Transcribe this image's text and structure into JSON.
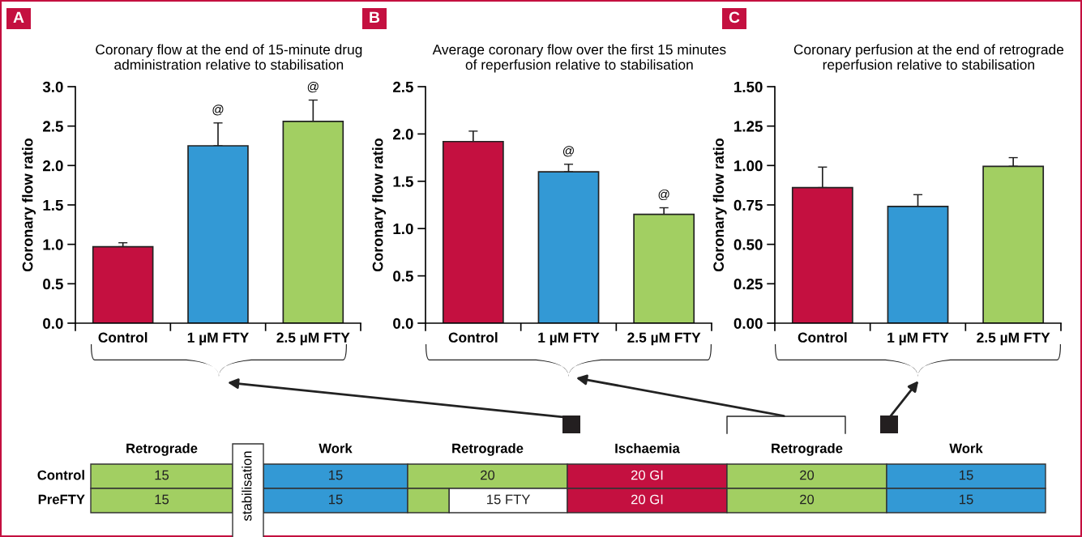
{
  "chart_data": [
    {
      "type": "bar",
      "title": "Coronary flow at the end of 15-minute drug\nadministration relative to stabilisation",
      "ylabel": "Coronary flow ratio",
      "categories": [
        "Control",
        "1 µM FTY",
        "2.5 µM FTY"
      ],
      "values": [
        0.97,
        2.25,
        2.56
      ],
      "colors": [
        "#c41040",
        "#3399d5",
        "#a2cf62"
      ],
      "errors": [
        [
          0.97,
          1.02
        ],
        [
          2.25,
          2.54
        ],
        [
          2.56,
          2.83
        ]
      ],
      "ylim": [
        0,
        3
      ],
      "yticks": [
        {
          "value": 0,
          "label": "0.0"
        },
        0.5,
        {
          "value": 1,
          "label": "1.0"
        },
        1.5,
        {
          "value": 2,
          "label": "2.0"
        },
        2.5,
        {
          "value": 3,
          "label": "3.0"
        }
      ],
      "annotations": [
        "A",
        {
          "text": "@",
          "x": "1 µM FTY",
          "y": 2.54
        },
        {
          "text": "@",
          "x": "2.5 µM FTY",
          "y": 2.83
        }
      ],
      "grid": false,
      "legend": false
    },
    {
      "type": "bar",
      "title": "Average coronary flow over the first 15 minutes\nof reperfusion relative to stabilisation",
      "ylabel": "Coronary flow ratio",
      "categories": [
        "Control",
        "1 µM FTY",
        "2.5 µM FTY"
      ],
      "values": [
        1.92,
        1.6,
        1.15
      ],
      "colors": [
        "#c41040",
        "#3399d5",
        "#a2cf62"
      ],
      "errors": [
        [
          1.92,
          2.03
        ],
        [
          1.6,
          1.68
        ],
        [
          1.15,
          1.22
        ]
      ],
      "ylim": [
        0,
        2.5
      ],
      "yticks": [
        {
          "value": 0,
          "label": "0.0"
        },
        0.5,
        {
          "value": 1,
          "label": "1.0"
        },
        1.5,
        {
          "value": 2,
          "label": "2.0"
        },
        2.5
      ],
      "annotations": [
        "B",
        {
          "text": "@",
          "x": "1 µM FTY",
          "y": 1.68
        },
        {
          "text": "@",
          "x": "2.5 µM FTY",
          "y": 1.22
        }
      ],
      "grid": false,
      "legend": false
    },
    {
      "type": "bar",
      "title": "Coronary perfusion at the end of retrograde\nreperfusion relative to stabilisation",
      "ylabel": "Coronary flow ratio",
      "categories": [
        "Control",
        "1 µM FTY",
        "2.5 µM FTY"
      ],
      "values": [
        0.86,
        0.74,
        0.995
      ],
      "colors": [
        "#c41040",
        "#3399d5",
        "#a2cf62"
      ],
      "errors": [
        [
          0.86,
          0.99
        ],
        [
          0.74,
          0.815
        ],
        [
          0.995,
          1.05
        ]
      ],
      "ylim": [
        0,
        1.5
      ],
      "yticks": [
        {
          "value": 0,
          "label": "0.00"
        },
        0.25,
        {
          "value": 0.5,
          "label": "0.50"
        },
        0.75,
        {
          "value": 1,
          "label": "1.00"
        },
        1.25,
        {
          "value": 1.5,
          "label": "1.50"
        }
      ],
      "annotations": [
        "C"
      ],
      "grid": false,
      "legend": false
    },
    {
      "type": "other",
      "categories": [
        "Retrograde",
        "Work",
        "Retrograde",
        "Ischaemia",
        "Retrograde",
        "Work"
      ],
      "y_categories": [
        "Control",
        "PreFTY"
      ],
      "cell_labels": [
        [
          "15",
          "15",
          "20",
          "20 GI",
          "20",
          "15"
        ],
        [
          "15",
          "15",
          [
            null,
            "15 FTY"
          ],
          "20 GI",
          "20",
          "15"
        ]
      ],
      "colors": [
        [
          "#a2cf62",
          "#3399d5",
          "#a2cf62",
          "#c41040",
          "#a2cf62",
          "#3399d5"
        ],
        [
          "#a2cf62",
          "#3399d5",
          [
            "#a2cf62",
            "#ffffff"
          ],
          "#c41040",
          "#a2cf62",
          "#3399d5"
        ]
      ],
      "annotations": [
        "stabilisation"
      ]
    }
  ]
}
